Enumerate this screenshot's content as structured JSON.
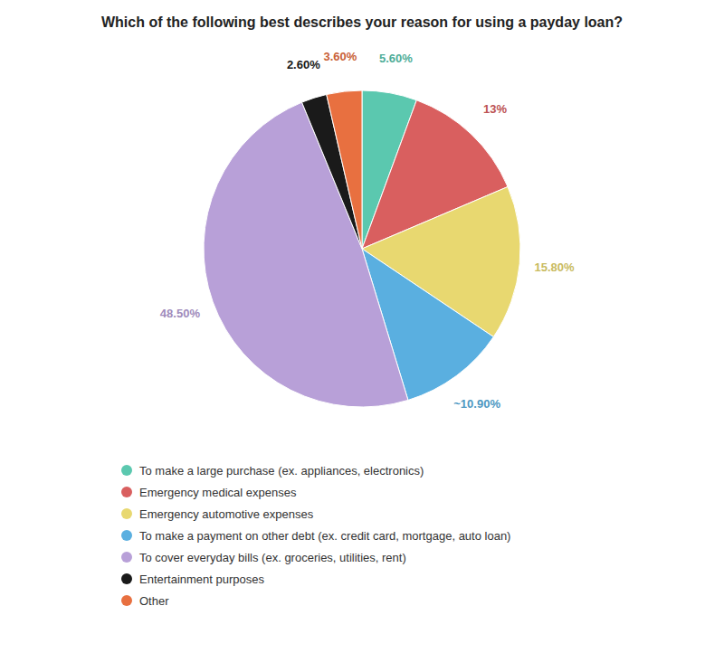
{
  "chart_data": {
    "type": "pie",
    "title": "Which of the following best describes your reason for using a payday loan?",
    "categories": [
      "To make a large purchase (ex. appliances, electronics)",
      "Emergency medical expenses",
      "Emergency automotive expenses",
      "To make a payment on other debt (ex. credit card, mortgage, auto loan)",
      "To cover everyday bills (ex. groceries, utilities, rent)",
      "Entertainment purposes",
      "Other"
    ],
    "values": [
      5.6,
      13.0,
      15.8,
      10.9,
      48.5,
      2.6,
      3.6
    ],
    "value_labels": [
      "5.60%",
      "13%",
      "15.80%",
      "~10.90%",
      "48.50%",
      "2.60%",
      "3.60%"
    ],
    "colors": [
      "#5BC8AF",
      "#D95F5F",
      "#E8D870",
      "#5AAFE0",
      "#B8A0D8",
      "#1A1A1A",
      "#E87040"
    ],
    "data_labels": true,
    "legend": "bottom"
  }
}
